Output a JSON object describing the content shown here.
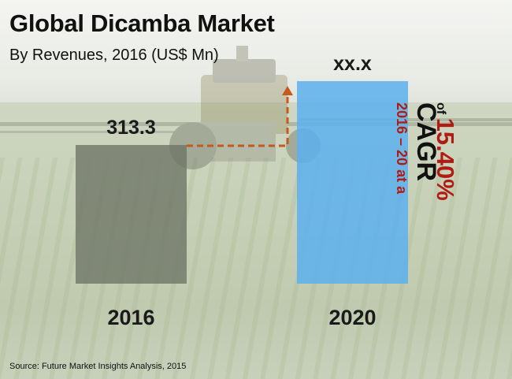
{
  "title": "Global Dicamba Market",
  "subtitle": "By Revenues, 2016 (US$ Mn)",
  "source": "Source: Future Market Insights Analysis, 2015",
  "cagr": {
    "label": "CAGR",
    "period": "2016 – 20 at a",
    "of": "of",
    "value": "15.40%"
  },
  "colors": {
    "bar_2016": "#6f7567",
    "bar_2020": "#5cb0ef",
    "arrow": "#c55a1b",
    "cagr_red": "#b01c14"
  },
  "chart_data": {
    "type": "bar",
    "categories": [
      "2016",
      "2020"
    ],
    "values": [
      313.3,
      null
    ],
    "data_labels": [
      "313.3",
      "xx.x"
    ],
    "title": "Global Dicamba Market",
    "subtitle": "By Revenues, 2016 (US$ Mn)",
    "xlabel": "",
    "ylabel": "",
    "grid": false,
    "legend": "none"
  }
}
